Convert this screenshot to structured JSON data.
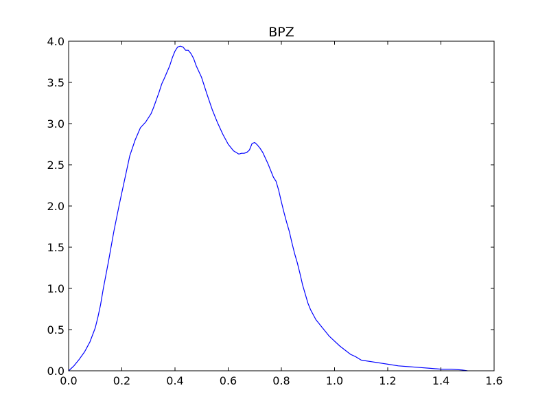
{
  "colors": {
    "background": "#ffffff",
    "axes": "#000000",
    "series": "#0000ff"
  },
  "chart_data": {
    "type": "line",
    "title": "BPZ",
    "xlabel": "",
    "ylabel": "",
    "xlim": [
      0.0,
      1.6
    ],
    "ylim": [
      0.0,
      4.0
    ],
    "grid": false,
    "legend": "none",
    "xticks": [
      "0.0",
      "0.2",
      "0.4",
      "0.6",
      "0.8",
      "1.0",
      "1.2",
      "1.4",
      "1.6"
    ],
    "yticks": [
      "0.0",
      "0.5",
      "1.0",
      "1.5",
      "2.0",
      "2.5",
      "3.0",
      "3.5",
      "4.0"
    ],
    "series": [
      {
        "color": "#0000ff",
        "x": [
          0.0,
          0.02,
          0.04,
          0.06,
          0.08,
          0.1,
          0.11,
          0.12,
          0.13,
          0.15,
          0.17,
          0.19,
          0.21,
          0.23,
          0.25,
          0.27,
          0.29,
          0.31,
          0.32,
          0.33,
          0.34,
          0.35,
          0.36,
          0.38,
          0.39,
          0.4,
          0.41,
          0.42,
          0.43,
          0.44,
          0.45,
          0.46,
          0.47,
          0.48,
          0.49,
          0.5,
          0.52,
          0.54,
          0.56,
          0.58,
          0.6,
          0.62,
          0.64,
          0.65,
          0.66,
          0.67,
          0.68,
          0.69,
          0.7,
          0.71,
          0.72,
          0.73,
          0.74,
          0.75,
          0.76,
          0.77,
          0.78,
          0.79,
          0.8,
          0.81,
          0.82,
          0.83,
          0.84,
          0.85,
          0.86,
          0.87,
          0.88,
          0.89,
          0.9,
          0.91,
          0.92,
          0.93,
          0.94,
          0.95,
          0.96,
          0.97,
          0.98,
          0.99,
          1.0,
          1.02,
          1.04,
          1.06,
          1.08,
          1.1,
          1.12,
          1.14,
          1.16,
          1.18,
          1.2,
          1.24,
          1.28,
          1.32,
          1.36,
          1.4,
          1.44,
          1.48,
          1.5
        ],
        "y": [
          0.0,
          0.06,
          0.14,
          0.23,
          0.35,
          0.52,
          0.65,
          0.8,
          0.99,
          1.33,
          1.69,
          2.01,
          2.31,
          2.61,
          2.8,
          2.95,
          3.02,
          3.12,
          3.2,
          3.29,
          3.38,
          3.48,
          3.55,
          3.7,
          3.8,
          3.88,
          3.93,
          3.94,
          3.93,
          3.89,
          3.89,
          3.85,
          3.79,
          3.7,
          3.63,
          3.56,
          3.36,
          3.17,
          3.01,
          2.87,
          2.75,
          2.67,
          2.63,
          2.64,
          2.64,
          2.65,
          2.68,
          2.76,
          2.77,
          2.74,
          2.7,
          2.65,
          2.58,
          2.51,
          2.43,
          2.35,
          2.3,
          2.19,
          2.05,
          1.92,
          1.8,
          1.69,
          1.55,
          1.42,
          1.31,
          1.18,
          1.04,
          0.93,
          0.82,
          0.74,
          0.68,
          0.62,
          0.58,
          0.54,
          0.5,
          0.46,
          0.42,
          0.39,
          0.36,
          0.3,
          0.25,
          0.2,
          0.17,
          0.13,
          0.12,
          0.11,
          0.1,
          0.09,
          0.08,
          0.06,
          0.05,
          0.04,
          0.03,
          0.02,
          0.02,
          0.01,
          0.0
        ]
      }
    ]
  }
}
